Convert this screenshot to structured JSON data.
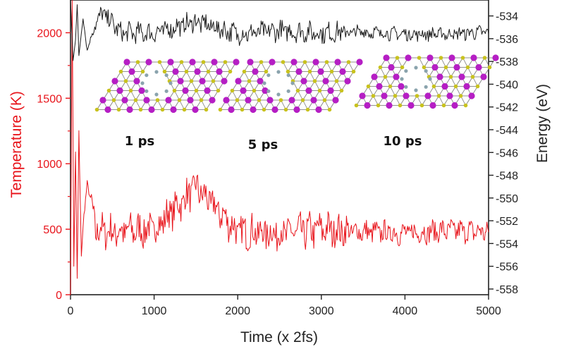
{
  "chart_data": {
    "type": "line",
    "xlabel": "Time (x 2fs)",
    "ylabel_left": "Temperature (K)",
    "ylabel_right": "Energy (eV)",
    "xlim": [
      0,
      5000
    ],
    "ylim_left": [
      0,
      2250
    ],
    "ylim_right": [
      -558.5,
      -532.6
    ],
    "xticks": [
      "0",
      "1000",
      "2000",
      "3000",
      "4000",
      "5000"
    ],
    "yticks_left": [
      "0",
      "500",
      "1000",
      "1500",
      "2000"
    ],
    "yticks_right": [
      "-534",
      "-536",
      "-538",
      "-540",
      "-542",
      "-544",
      "-546",
      "-548",
      "-550",
      "-552",
      "-554",
      "-556",
      "-558"
    ],
    "grid": false,
    "colors": {
      "temperature": "#e8141b",
      "energy": "#1a1a1a",
      "atom_large": "#b51ec4",
      "atom_small": "#c8c21e",
      "atom_gray": "#8aa3ad"
    },
    "series": [
      {
        "axis": "left",
        "color": "#e8141b",
        "note": "temperature trace, equilibrates near 500 K",
        "x": [
          0,
          20,
          40,
          60,
          80,
          100,
          130,
          160,
          200,
          300,
          500,
          1000,
          1500,
          2000,
          2500,
          2800,
          3000,
          3500,
          4000,
          4500,
          5000
        ],
        "y": [
          0,
          2250,
          200,
          1100,
          120,
          1250,
          300,
          600,
          860,
          500,
          480,
          500,
          820,
          480,
          470,
          480,
          500,
          480,
          470,
          490,
          480
        ],
        "noise_amplitude": 120
      },
      {
        "axis": "right",
        "color": "#1a1a1a",
        "note": "energy trace, settles near -535.5 eV",
        "x": [
          0,
          30,
          60,
          80,
          100,
          150,
          200,
          300,
          400,
          600,
          1000,
          1500,
          2000,
          2500,
          3000,
          3500,
          4000,
          4500,
          5000
        ],
        "y": [
          -532.6,
          -538.0,
          -536.0,
          -533.0,
          -537.5,
          -534.2,
          -537.0,
          -534.5,
          -533.8,
          -535.5,
          -535.5,
          -534.5,
          -535.6,
          -535.3,
          -535.5,
          -535.4,
          -535.6,
          -535.6,
          -535.4
        ],
        "noise_amplitude": 0.8
      }
    ],
    "insets": [
      {
        "label": "1 ps"
      },
      {
        "label": "5 ps"
      },
      {
        "label": "10 ps"
      }
    ]
  }
}
